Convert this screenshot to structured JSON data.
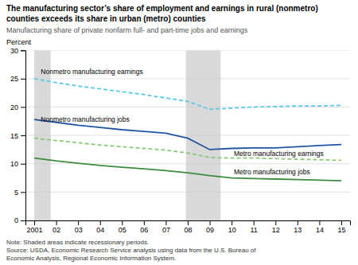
{
  "chart_data": {
    "type": "line",
    "title": "The manufacturing sector’s share of employment and earnings in rural (nonmetro)\ncounties exceeds its share in urban (metro) counties",
    "subtitle": "Manufacturing share of private nonfarm full- and part-time jobs and earnings",
    "y_label": "Percent",
    "note": "Note: Shaded areas indicate recessionary periods.\nSource: USDA, Economic Research Service analysis using data from the U.S. Bureau of\nEconomic Analysis, Regional Economic Information System.",
    "x": [
      2001,
      2002,
      2003,
      2004,
      2005,
      2006,
      2007,
      2008,
      2009,
      2010,
      2011,
      2012,
      2013,
      2014,
      2015
    ],
    "series": [
      {
        "color": "#5bc8e8",
        "line_style": "dashed",
        "values": [
          25.0,
          24.3,
          23.7,
          23.2,
          22.7,
          22.2,
          21.6,
          21.0,
          19.6,
          19.8,
          20.0,
          20.1,
          20.2,
          20.2,
          20.3
        ]
      },
      {
        "color": "#2255a0",
        "line_style": "solid",
        "values": [
          17.8,
          17.3,
          16.8,
          16.4,
          16.0,
          15.7,
          15.4,
          14.5,
          12.5,
          12.7,
          12.8,
          12.8,
          13.0,
          13.2,
          13.4
        ]
      },
      {
        "color": "#8dc879",
        "line_style": "dashed",
        "values": [
          14.5,
          14.1,
          13.7,
          13.3,
          13.0,
          12.7,
          12.4,
          11.9,
          11.1,
          11.0,
          11.0,
          10.9,
          10.8,
          10.7,
          10.6
        ]
      },
      {
        "color": "#3d8c3d",
        "line_style": "solid",
        "values": [
          11.0,
          10.5,
          10.1,
          9.7,
          9.4,
          9.1,
          8.8,
          8.4,
          7.9,
          7.5,
          7.4,
          7.3,
          7.2,
          7.1,
          7.0
        ]
      }
    ],
    "annotations": [
      {
        "text": "Nonmetro manufacturing earnings",
        "x": 2001.3,
        "y": 25.5
      },
      {
        "text": "Nonmetro manufacturing jobs",
        "x": 2001.3,
        "y": 17.1
      },
      {
        "text": "Metro manufacturing earnings",
        "x": 2010.1,
        "y": 11.1
      },
      {
        "text": "Metro manufacturing jobs",
        "x": 2010.1,
        "y": 7.8
      }
    ],
    "shaded_periods": [
      {
        "x": [
          2001.0,
          2001.75
        ],
        "color": "#d9d9d9"
      },
      {
        "x": [
          2007.917,
          2009.5
        ],
        "color": "#d9d9d9"
      }
    ],
    "xlim": [
      2000.6,
      2015.4
    ],
    "xticks": [
      2001,
      {
        "value": 2002,
        "label": "02"
      },
      {
        "value": 2003,
        "label": "03"
      },
      {
        "value": 2004,
        "label": "04"
      },
      {
        "value": 2005,
        "label": "05"
      },
      {
        "value": 2006,
        "label": "06"
      },
      {
        "value": 2007,
        "label": "07"
      },
      {
        "value": 2008,
        "label": "08"
      },
      {
        "value": 2009,
        "label": "09"
      },
      {
        "value": 2010,
        "label": "10"
      },
      {
        "value": 2011,
        "label": "11"
      },
      {
        "value": 2012,
        "label": "12"
      },
      {
        "value": 2013,
        "label": "13"
      },
      {
        "value": 2014,
        "label": "14"
      },
      {
        "value": 2015,
        "label": "15"
      }
    ],
    "ylim": [
      0,
      30
    ],
    "yticks": [
      0,
      5,
      10,
      15,
      20,
      25,
      30
    ],
    "grid": true
  }
}
